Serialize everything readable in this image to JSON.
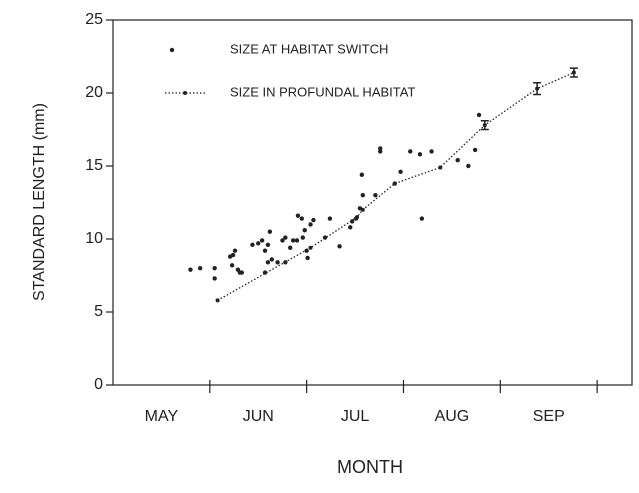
{
  "chart_data": {
    "type": "scatter",
    "xlabel": "MONTH",
    "ylabel": "STANDARD LENGTH (mm)",
    "categories": [
      "MAY",
      "JUN",
      "JUL",
      "AUG",
      "SEP"
    ],
    "xlim": [
      0,
      5.36
    ],
    "xticks": [
      1,
      2,
      3,
      4,
      5
    ],
    "ylim": [
      0,
      25
    ],
    "yticks": [
      0,
      5,
      10,
      15,
      20,
      25
    ],
    "series": [
      {
        "name": "SIZE AT HABITAT SWITCH",
        "color": "#222222",
        "x": [
          0.8,
          0.9,
          1.05,
          1.05,
          1.21,
          1.24,
          1.26,
          1.23,
          1.29,
          1.31,
          1.33,
          1.44,
          1.5,
          1.54,
          1.57,
          1.6,
          1.62,
          1.57,
          1.6,
          1.64,
          1.7,
          1.75,
          1.78,
          1.78,
          1.83,
          1.86,
          1.9,
          1.91,
          1.95,
          1.96,
          1.98,
          2.0,
          2.01,
          2.04,
          2.07,
          2.19,
          2.24,
          2.34,
          2.45,
          2.47,
          2.51,
          2.55,
          2.57,
          2.58,
          2.71,
          2.76,
          2.76,
          2.91,
          3.07,
          3.19,
          3.17,
          3.29,
          3.56,
          3.67,
          3.74,
          3.78,
          2.97
        ],
        "values": [
          7.9,
          8.0,
          8.0,
          7.3,
          8.8,
          8.9,
          9.2,
          8.2,
          7.9,
          7.7,
          7.7,
          9.6,
          9.7,
          9.9,
          9.2,
          9.6,
          10.5,
          7.7,
          8.4,
          8.6,
          8.4,
          9.9,
          10.1,
          8.4,
          9.4,
          9.9,
          9.9,
          11.6,
          11.4,
          10.1,
          10.6,
          9.2,
          8.7,
          11.0,
          11.3,
          10.1,
          11.4,
          9.5,
          10.8,
          11.2,
          11.4,
          12.1,
          14.4,
          13.0,
          13.0,
          16.0,
          16.2,
          13.8,
          16.0,
          11.4,
          15.8,
          16.0,
          15.4,
          15.0,
          16.1,
          18.5,
          14.6
        ]
      },
      {
        "name": "SIZE IN PROFUNDAL HABITAT",
        "color": "#222222",
        "type": "line",
        "x": [
          1.08,
          2.04,
          2.52,
          2.58,
          2.91,
          3.38,
          3.84,
          4.38,
          4.76
        ],
        "values": [
          5.8,
          9.4,
          11.5,
          12.0,
          13.8,
          14.9,
          17.8,
          20.3,
          21.4
        ],
        "errors": [
          null,
          null,
          null,
          null,
          null,
          null,
          0.3,
          0.4,
          0.3
        ]
      }
    ]
  }
}
